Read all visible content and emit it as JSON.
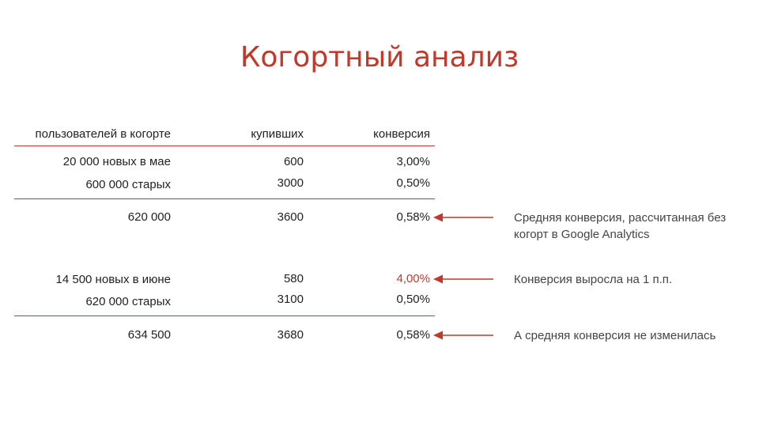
{
  "title": "Когортный анализ",
  "headers": {
    "users": "пользователей в когорте",
    "bought": "купивших",
    "conversion": "конверсия"
  },
  "block1": {
    "row_new": {
      "users": "20 000 новых в мае",
      "bought": "600",
      "conversion": "3,00%"
    },
    "row_old": {
      "users": "600 000 старых",
      "bought": "3000",
      "conversion": "0,50%"
    },
    "total": {
      "users": "620 000",
      "bought": "3600",
      "conversion": "0,58%"
    }
  },
  "block2": {
    "row_new": {
      "users": "14 500 новых в июне",
      "bought": "580",
      "conversion": "4,00%"
    },
    "row_old": {
      "users": "620 000 старых",
      "bought": "3100",
      "conversion": "0,50%"
    },
    "total": {
      "users": "634 500",
      "bought": "3680",
      "conversion": "0,58%"
    }
  },
  "notes": {
    "note1": "Средняя конверсия, рассчитанная без когорт в Google Analytics",
    "note2": "Конверсия выросла на 1 п.п.",
    "note3": "А средняя конверсия не изменилась"
  },
  "colors": {
    "accent": "#c0392b",
    "text": "#222222"
  }
}
